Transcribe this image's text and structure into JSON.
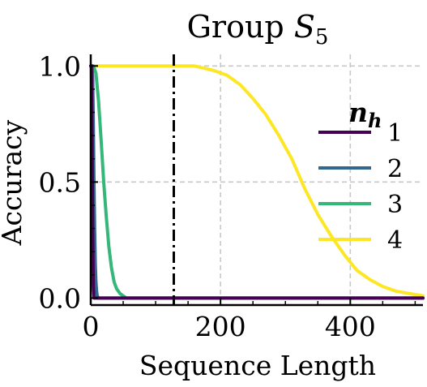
{
  "chart_data": {
    "type": "line",
    "title": "Group ",
    "title_math": "S",
    "title_sub": "5",
    "xlabel": "Sequence Length",
    "ylabel": "Accuracy",
    "xlim": [
      0,
      512
    ],
    "ylim": [
      -0.03,
      1.05
    ],
    "xticks": [
      0,
      200,
      400
    ],
    "yticks": [
      0.0,
      0.5,
      1.0
    ],
    "xtick_labels": [
      "0",
      "200",
      "400"
    ],
    "ytick_labels": [
      "0.0",
      "0.5",
      "1.0"
    ],
    "grid": true,
    "legend_title": "n",
    "legend_title_sub": "h",
    "legend_placement": "right",
    "vline_x": 128,
    "series": [
      {
        "name": "1",
        "color": "#440154",
        "x": [
          0,
          1,
          2,
          3,
          4,
          5,
          6,
          8,
          10,
          512
        ],
        "y": [
          1.0,
          1.0,
          0.7,
          0.3,
          0.05,
          0.0,
          0.0,
          0.0,
          0.0,
          0.0
        ]
      },
      {
        "name": "2",
        "color": "#31688e",
        "x": [
          0,
          2,
          3,
          4,
          5,
          6,
          7,
          8,
          9,
          10,
          12,
          512
        ],
        "y": [
          1.0,
          1.0,
          0.95,
          0.75,
          0.5,
          0.3,
          0.15,
          0.07,
          0.03,
          0.01,
          0.0,
          0.0
        ]
      },
      {
        "name": "3",
        "color": "#35b779",
        "x": [
          0,
          4,
          8,
          12,
          16,
          20,
          24,
          28,
          32,
          36,
          40,
          45,
          50,
          55,
          60,
          512
        ],
        "y": [
          1.0,
          1.0,
          0.97,
          0.85,
          0.68,
          0.5,
          0.35,
          0.22,
          0.13,
          0.07,
          0.04,
          0.02,
          0.01,
          0.0,
          0.0,
          0.0
        ]
      },
      {
        "name": "4",
        "color": "#fde725",
        "x": [
          0,
          120,
          160,
          190,
          210,
          230,
          250,
          270,
          290,
          310,
          330,
          350,
          370,
          390,
          410,
          430,
          450,
          470,
          490,
          512
        ],
        "y": [
          1.0,
          1.0,
          1.0,
          0.98,
          0.96,
          0.92,
          0.86,
          0.79,
          0.7,
          0.6,
          0.47,
          0.36,
          0.27,
          0.19,
          0.12,
          0.08,
          0.05,
          0.03,
          0.02,
          0.01
        ]
      }
    ]
  }
}
